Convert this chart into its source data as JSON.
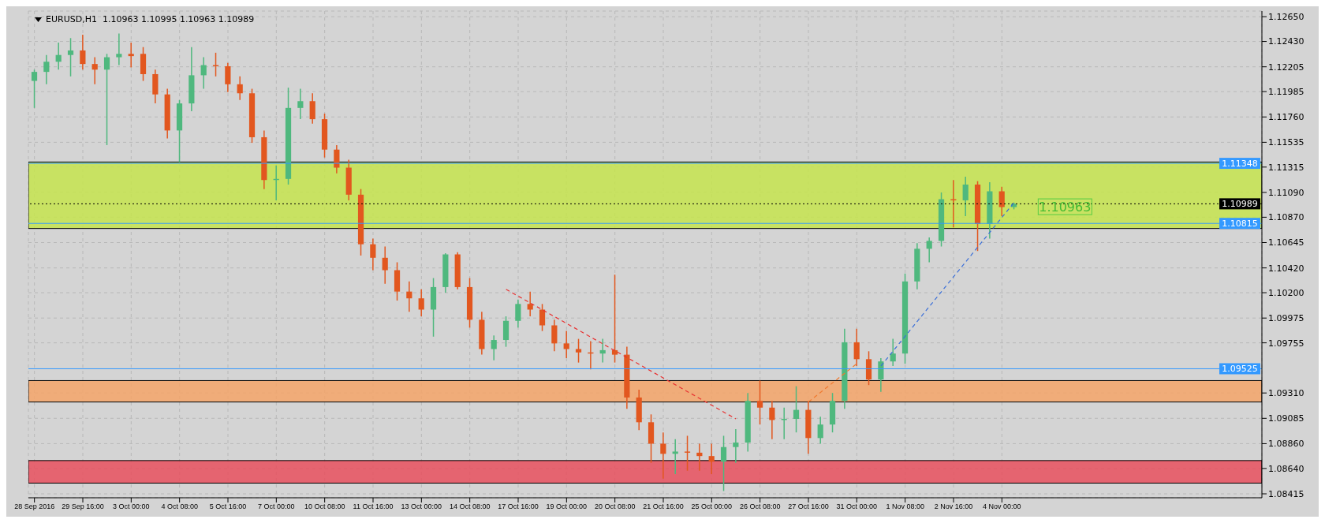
{
  "chart_data": {
    "type": "candlestick",
    "title": "EURUSD,H1  1.10963 1.10995 1.10963 1.10989",
    "categories": [
      "28 Sep 2016",
      null,
      null,
      null,
      "29 Sep 16:00",
      null,
      null,
      null,
      "3 Oct 00:00",
      null,
      null,
      null,
      "4 Oct 08:00",
      null,
      null,
      null,
      "5 Oct 16:00",
      null,
      null,
      null,
      "7 Oct 00:00",
      null,
      null,
      null,
      "10 Oct 08:00",
      null,
      null,
      null,
      "11 Oct 16:00",
      null,
      null,
      null,
      "13 Oct 00:00",
      null,
      null,
      null,
      "14 Oct 08:00",
      null,
      null,
      null,
      "17 Oct 16:00",
      null,
      null,
      null,
      "19 Oct 00:00",
      null,
      null,
      null,
      "20 Oct 08:00",
      null,
      null,
      null,
      "21 Oct 16:00",
      null,
      null,
      null,
      "25 Oct 00:00",
      null,
      null,
      null,
      "26 Oct 08:00",
      null,
      null,
      null,
      "27 Oct 16:00",
      null,
      null,
      null,
      "31 Oct 00:00",
      null,
      null,
      null,
      "1 Nov 08:00",
      null,
      null,
      null,
      "2 Nov 16:00",
      null,
      null,
      null,
      "4 Nov 00:00",
      null,
      null,
      null,
      null,
      null,
      null,
      null,
      null,
      null,
      null,
      null,
      null,
      null,
      null,
      null,
      null,
      null,
      null,
      null,
      null,
      null
    ],
    "ohlc": [
      [
        1.1208,
        1.1218,
        1.1184,
        1.1216
      ],
      [
        1.1216,
        1.1231,
        1.1205,
        1.1225
      ],
      [
        1.1225,
        1.1242,
        1.1218,
        1.1231
      ],
      [
        1.1231,
        1.1246,
        1.1212,
        1.1235
      ],
      [
        1.1235,
        1.1249,
        1.1218,
        1.1223
      ],
      [
        1.1223,
        1.1229,
        1.1205,
        1.1218
      ],
      [
        1.1218,
        1.1232,
        1.1151,
        1.1229
      ],
      [
        1.1229,
        1.125,
        1.1222,
        1.1232
      ],
      [
        1.1232,
        1.1242,
        1.122,
        1.123
      ],
      [
        1.1232,
        1.1238,
        1.1208,
        1.1214
      ],
      [
        1.1214,
        1.1218,
        1.1188,
        1.1196
      ],
      [
        1.1196,
        1.1201,
        1.1157,
        1.1164
      ],
      [
        1.1164,
        1.1191,
        1.1136,
        1.1188
      ],
      [
        1.1188,
        1.1238,
        1.1181,
        1.1213
      ],
      [
        1.1213,
        1.1229,
        1.1201,
        1.1222
      ],
      [
        1.1222,
        1.1233,
        1.1212,
        1.1221
      ],
      [
        1.1221,
        1.1224,
        1.1198,
        1.1205
      ],
      [
        1.1205,
        1.1212,
        1.1191,
        1.1197
      ],
      [
        1.1197,
        1.1201,
        1.1153,
        1.1158
      ],
      [
        1.1158,
        1.1164,
        1.1112,
        1.112
      ],
      [
        1.112,
        1.1133,
        1.1102,
        1.1121
      ],
      [
        1.1121,
        1.1202,
        1.1116,
        1.1184
      ],
      [
        1.1184,
        1.1201,
        1.1174,
        1.119
      ],
      [
        1.119,
        1.1197,
        1.117,
        1.1174
      ],
      [
        1.1174,
        1.1179,
        1.114,
        1.1147
      ],
      [
        1.1147,
        1.1151,
        1.1126,
        1.1131
      ],
      [
        1.1131,
        1.1138,
        1.1102,
        1.1107
      ],
      [
        1.1107,
        1.1112,
        1.1053,
        1.1063
      ],
      [
        1.1063,
        1.1068,
        1.104,
        1.1051
      ],
      [
        1.1051,
        1.1061,
        1.1028,
        1.104
      ],
      [
        1.104,
        1.1047,
        1.1013,
        1.1021
      ],
      [
        1.1021,
        1.103,
        1.1003,
        1.1015
      ],
      [
        1.1015,
        1.1023,
        1.0999,
        1.1005
      ],
      [
        1.1005,
        1.1033,
        1.0981,
        1.1025
      ],
      [
        1.1025,
        1.1055,
        1.102,
        1.1054
      ],
      [
        1.1054,
        1.1056,
        1.1023,
        1.1025
      ],
      [
        1.1025,
        1.1033,
        1.0989,
        1.0996
      ],
      [
        1.0996,
        1.1003,
        1.0965,
        1.097
      ],
      [
        1.097,
        1.0982,
        1.096,
        1.0978
      ],
      [
        1.0978,
        1.0999,
        1.0972,
        1.0995
      ],
      [
        1.0995,
        1.1014,
        1.0989,
        1.101
      ],
      [
        1.101,
        1.1021,
        1.0999,
        1.1005
      ],
      [
        1.1005,
        1.101,
        1.0986,
        1.0991
      ],
      [
        1.0991,
        1.0996,
        1.0968,
        1.0975
      ],
      [
        1.0975,
        1.0986,
        1.0962,
        1.097
      ],
      [
        1.097,
        1.0979,
        1.0958,
        1.0967
      ],
      [
        1.0967,
        1.0977,
        1.0952,
        1.0966
      ],
      [
        1.0966,
        1.0979,
        1.0958,
        1.0969
      ],
      [
        1.0969,
        1.1036,
        1.0958,
        1.0965
      ],
      [
        1.0965,
        1.0972,
        1.0917,
        1.0927
      ],
      [
        1.0927,
        1.0934,
        1.0898,
        1.0905
      ],
      [
        1.0905,
        1.0912,
        1.0869,
        1.0886
      ],
      [
        1.0886,
        1.0896,
        1.0855,
        1.0877
      ],
      [
        1.0877,
        1.089,
        1.0859,
        1.0879
      ],
      [
        1.0879,
        1.0893,
        1.0862,
        1.0878
      ],
      [
        1.0878,
        1.0886,
        1.0862,
        1.0875
      ],
      [
        1.0875,
        1.0886,
        1.0859,
        1.087
      ],
      [
        1.087,
        1.0893,
        1.0844,
        1.0883
      ],
      [
        1.0883,
        1.0899,
        1.0869,
        1.0887
      ],
      [
        1.0887,
        1.0931,
        1.0879,
        1.0924
      ],
      [
        1.0924,
        1.0942,
        1.0903,
        1.0918
      ],
      [
        1.0918,
        1.0924,
        1.089,
        1.0907
      ],
      [
        1.0907,
        1.0918,
        1.089,
        1.0908
      ],
      [
        1.0908,
        1.0937,
        1.0896,
        1.0916
      ],
      [
        1.0916,
        1.0924,
        1.0877,
        1.0891
      ],
      [
        1.0891,
        1.091,
        1.0886,
        1.0903
      ],
      [
        1.0903,
        1.0931,
        1.0896,
        1.0924
      ],
      [
        1.0924,
        1.0988,
        1.0917,
        1.0976
      ],
      [
        1.0976,
        1.0988,
        1.0955,
        1.0961
      ],
      [
        1.0961,
        1.0968,
        1.0938,
        1.0943
      ],
      [
        1.0943,
        1.0962,
        1.0932,
        1.0959
      ],
      [
        1.0959,
        1.0979,
        1.0955,
        1.0966
      ],
      [
        1.0966,
        1.1037,
        1.0957,
        1.103
      ],
      [
        1.103,
        1.1064,
        1.1023,
        1.1059
      ],
      [
        1.1059,
        1.1069,
        1.1047,
        1.1066
      ],
      [
        1.1066,
        1.1109,
        1.1061,
        1.1103
      ],
      [
        1.1103,
        1.112,
        1.1078,
        1.1102
      ],
      [
        1.1102,
        1.1123,
        1.1088,
        1.1116
      ],
      [
        1.1116,
        1.1119,
        1.1057,
        1.1081
      ],
      [
        1.1081,
        1.1118,
        1.1068,
        1.111
      ],
      [
        1.111,
        1.1114,
        1.1088,
        1.1096
      ],
      [
        1.1096,
        1.11,
        1.1094,
        1.1099
      ],
      null,
      null,
      null,
      null,
      null,
      null,
      null,
      null,
      null,
      null,
      null,
      null,
      null,
      null,
      null,
      null,
      null,
      null,
      null,
      null
    ],
    "colors": [
      "#4fb87e",
      "#4fb87e",
      "#4fb87e",
      "#4fb87e",
      "#e2571f",
      "#e2571f",
      "#4fb87e",
      "#4fb87e",
      "#e2571f",
      "#e2571f",
      "#e2571f",
      "#e2571f",
      "#4fb87e",
      "#4fb87e",
      "#4fb87e",
      "#e2571f",
      "#e2571f",
      "#e2571f",
      "#e2571f",
      "#e2571f",
      "#4fb87e",
      "#4fb87e",
      "#4fb87e",
      "#e2571f",
      "#e2571f",
      "#e2571f",
      "#e2571f",
      "#e2571f",
      "#e2571f",
      "#e2571f",
      "#e2571f",
      "#e2571f",
      "#e2571f",
      "#4fb87e",
      "#4fb87e",
      "#e2571f",
      "#e2571f",
      "#e2571f",
      "#4fb87e",
      "#4fb87e",
      "#4fb87e",
      "#e2571f",
      "#e2571f",
      "#e2571f",
      "#e2571f",
      "#e2571f",
      "#e2571f",
      "#4fb87e",
      "#e2571f",
      "#e2571f",
      "#e2571f",
      "#e2571f",
      "#e2571f",
      "#4fb87e",
      "#e2571f",
      "#e2571f",
      "#e2571f",
      "#4fb87e",
      "#4fb87e",
      "#4fb87e",
      "#e2571f",
      "#e2571f",
      "#4fb87e",
      "#4fb87e",
      "#e2571f",
      "#4fb87e",
      "#4fb87e",
      "#4fb87e",
      "#e2571f",
      "#e2571f",
      "#4fb87e",
      "#4fb87e",
      "#4fb87e",
      "#4fb87e",
      "#4fb87e",
      "#4fb87e",
      "#e2571f",
      "#4fb87e",
      "#e2571f",
      "#4fb87e",
      "#e2571f",
      "#4fb87e",
      null,
      null,
      null,
      null,
      null,
      null,
      null,
      null,
      null,
      null,
      null,
      null,
      null,
      null,
      null,
      null,
      null,
      null,
      null,
      null
    ],
    "series": [
      {
        "type": "line",
        "color": "#e83030",
        "line_style": "dashed",
        "values": [
          null,
          null,
          null,
          null,
          null,
          null,
          null,
          null,
          null,
          null,
          null,
          null,
          null,
          null,
          null,
          null,
          null,
          null,
          null,
          null,
          null,
          null,
          null,
          null,
          null,
          null,
          null,
          null,
          null,
          null,
          null,
          null,
          null,
          null,
          null,
          null,
          null,
          null,
          null,
          1.1023,
          null,
          null,
          null,
          null,
          null,
          null,
          null,
          null,
          null,
          null,
          null,
          null,
          null,
          null,
          null,
          null,
          null,
          null,
          1.0908,
          null,
          null,
          null,
          null,
          null,
          null,
          null,
          null,
          null,
          null,
          null,
          null,
          null,
          null,
          null,
          null,
          null,
          null,
          null,
          null,
          null,
          null,
          null,
          null,
          null,
          null,
          null,
          null,
          null,
          null,
          null,
          null,
          null,
          null,
          null,
          null,
          null,
          null,
          null,
          null,
          null,
          null,
          null
        ]
      },
      {
        "type": "line",
        "color": "#f07a30",
        "line_style": "dashed",
        "values": [
          null,
          null,
          null,
          null,
          null,
          null,
          null,
          null,
          null,
          null,
          null,
          null,
          null,
          null,
          null,
          null,
          null,
          null,
          null,
          null,
          null,
          null,
          null,
          null,
          null,
          null,
          null,
          null,
          null,
          null,
          null,
          null,
          null,
          null,
          null,
          null,
          null,
          null,
          null,
          null,
          null,
          null,
          null,
          null,
          null,
          null,
          null,
          null,
          null,
          null,
          null,
          null,
          null,
          null,
          null,
          null,
          null,
          null,
          null,
          null,
          null,
          null,
          null,
          null,
          1.0923,
          null,
          null,
          null,
          1.0957,
          null,
          null,
          null,
          null,
          null,
          null,
          null,
          null,
          null,
          null,
          null,
          null,
          null,
          null,
          null,
          null,
          null,
          null,
          null,
          null,
          null,
          null,
          null,
          null,
          null,
          null,
          null,
          null,
          null,
          null,
          null,
          null,
          null
        ]
      },
      {
        "type": "line",
        "color": "#3a6fd8",
        "line_style": "dashed",
        "values": [
          null,
          null,
          null,
          null,
          null,
          null,
          null,
          null,
          null,
          null,
          null,
          null,
          null,
          null,
          null,
          null,
          null,
          null,
          null,
          null,
          null,
          null,
          null,
          null,
          null,
          null,
          null,
          null,
          null,
          null,
          null,
          null,
          null,
          null,
          null,
          null,
          null,
          null,
          null,
          null,
          null,
          null,
          null,
          null,
          null,
          null,
          null,
          null,
          null,
          null,
          null,
          null,
          null,
          null,
          null,
          null,
          null,
          null,
          null,
          null,
          null,
          null,
          null,
          null,
          null,
          null,
          null,
          null,
          null,
          null,
          1.0955,
          null,
          null,
          null,
          null,
          null,
          null,
          null,
          null,
          null,
          null,
          1.11,
          null,
          null,
          null,
          null,
          null,
          null,
          null,
          null,
          null,
          null,
          null,
          null,
          null,
          null,
          null,
          null,
          null,
          null,
          null,
          null
        ]
      }
    ],
    "ylim": [
      1.0838,
      1.127
    ],
    "yticks": [
      {
        "value": 1.1265,
        "label": "1.12650"
      },
      {
        "value": 1.1243,
        "label": "1.12430"
      },
      1.12205,
      1.11985,
      {
        "value": 1.1176,
        "label": "1.11760"
      },
      1.11535,
      1.11315,
      {
        "value": 1.1109,
        "label": "1.11090"
      },
      {
        "value": 1.1087,
        "label": "1.10870"
      },
      1.10645,
      {
        "value": 1.1042,
        "label": "1.10420"
      },
      {
        "value": 1.102,
        "label": "1.10200"
      },
      1.09975,
      1.09755,
      {
        "value": 1.0931,
        "label": "1.09310"
      },
      1.09085,
      {
        "value": 1.0886,
        "label": "1.08860"
      },
      {
        "value": 1.0864,
        "label": "1.08640"
      },
      1.08415
    ],
    "bands": [
      {
        "axis": "y",
        "from": 1.1077,
        "to": 1.1136,
        "color": "#c6e44e"
      },
      {
        "axis": "y",
        "from": 1.0923,
        "to": 1.0942,
        "color": "#f5a468"
      },
      {
        "axis": "y",
        "from": 1.0851,
        "to": 1.0871,
        "color": "#e8505e"
      }
    ],
    "ref_lines": [
      {
        "axis": "y",
        "value": 1.11348,
        "label": "1.11348",
        "color": "#3399ff"
      },
      {
        "axis": "y",
        "value": 1.10815,
        "label": "1.10815",
        "color": "#3399ff"
      },
      {
        "axis": "y",
        "value": 1.09525,
        "label": "1.09525",
        "color": "#3399ff"
      },
      {
        "axis": "y",
        "value": 1.10989,
        "label": "1.10989",
        "color": "#000000",
        "line_style": "dotted"
      }
    ],
    "annotations": [
      {
        "text": "1.10963",
        "y": 1.10963
      }
    ],
    "grid": true
  }
}
